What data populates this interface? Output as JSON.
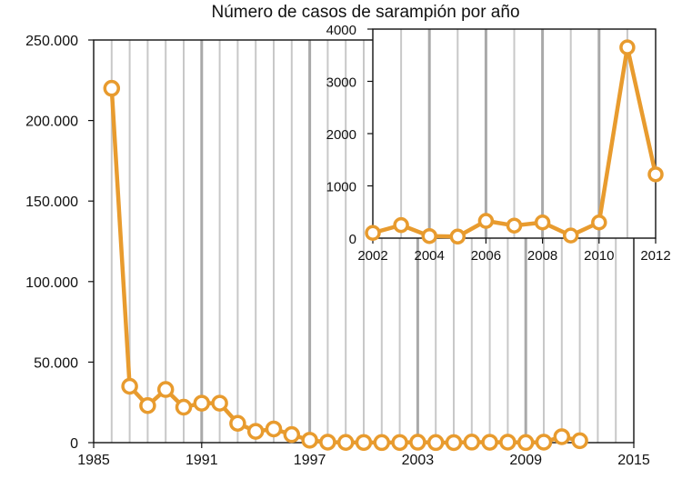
{
  "chart_data": [
    {
      "type": "line",
      "title": "Número de casos de sarampión por año",
      "xlabel": "",
      "ylabel": "",
      "xlim": [
        1985,
        2015
      ],
      "ylim": [
        0,
        250000
      ],
      "x_ticks": [
        1985,
        1991,
        1997,
        2003,
        2009,
        2015
      ],
      "x_tick_labels": [
        "1985",
        "1991",
        "1997",
        "2003",
        "2009",
        "2015"
      ],
      "y_ticks": [
        0,
        50000,
        100000,
        150000,
        200000,
        250000
      ],
      "y_tick_labels": [
        "0",
        "50.000",
        "100.000",
        "150.000",
        "200.000",
        "250.000"
      ],
      "grid": "vertical, yearly",
      "line_color": "#E89B2E",
      "marker": "open-circle",
      "series": [
        {
          "x": [
            1986,
            1987,
            1988,
            1989,
            1990,
            1991,
            1992,
            1993,
            1994,
            1995,
            1996,
            1997,
            1998,
            1999,
            2000,
            2001,
            2002,
            2003,
            2004,
            2005,
            2006,
            2007,
            2008,
            2009,
            2010,
            2011,
            2012
          ],
          "values": [
            220000,
            35000,
            23000,
            33000,
            22000,
            24500,
            24500,
            12000,
            7000,
            8500,
            5000,
            1500,
            300,
            150,
            100,
            50,
            100,
            250,
            40,
            30,
            330,
            240,
            300,
            50,
            300,
            3700,
            1200
          ]
        }
      ]
    },
    {
      "type": "line",
      "title": "",
      "xlabel": "",
      "ylabel": "",
      "xlim": [
        2002,
        2012
      ],
      "ylim": [
        0,
        4000
      ],
      "x_ticks": [
        2002,
        2004,
        2006,
        2008,
        2010,
        2012
      ],
      "x_tick_labels": [
        "2002",
        "2004",
        "2006",
        "2008",
        "2010",
        "2012"
      ],
      "y_ticks": [
        0,
        1000,
        2000,
        3000,
        4000
      ],
      "y_tick_labels": [
        "0",
        "1000",
        "2000",
        "3000",
        "4000"
      ],
      "grid": "vertical, yearly",
      "line_color": "#E89B2E",
      "marker": "open-circle",
      "series": [
        {
          "x": [
            2002,
            2003,
            2004,
            2005,
            2006,
            2007,
            2008,
            2009,
            2010,
            2011,
            2012
          ],
          "values": [
            100,
            250,
            40,
            30,
            330,
            240,
            300,
            50,
            300,
            3650,
            1220
          ]
        }
      ]
    }
  ]
}
